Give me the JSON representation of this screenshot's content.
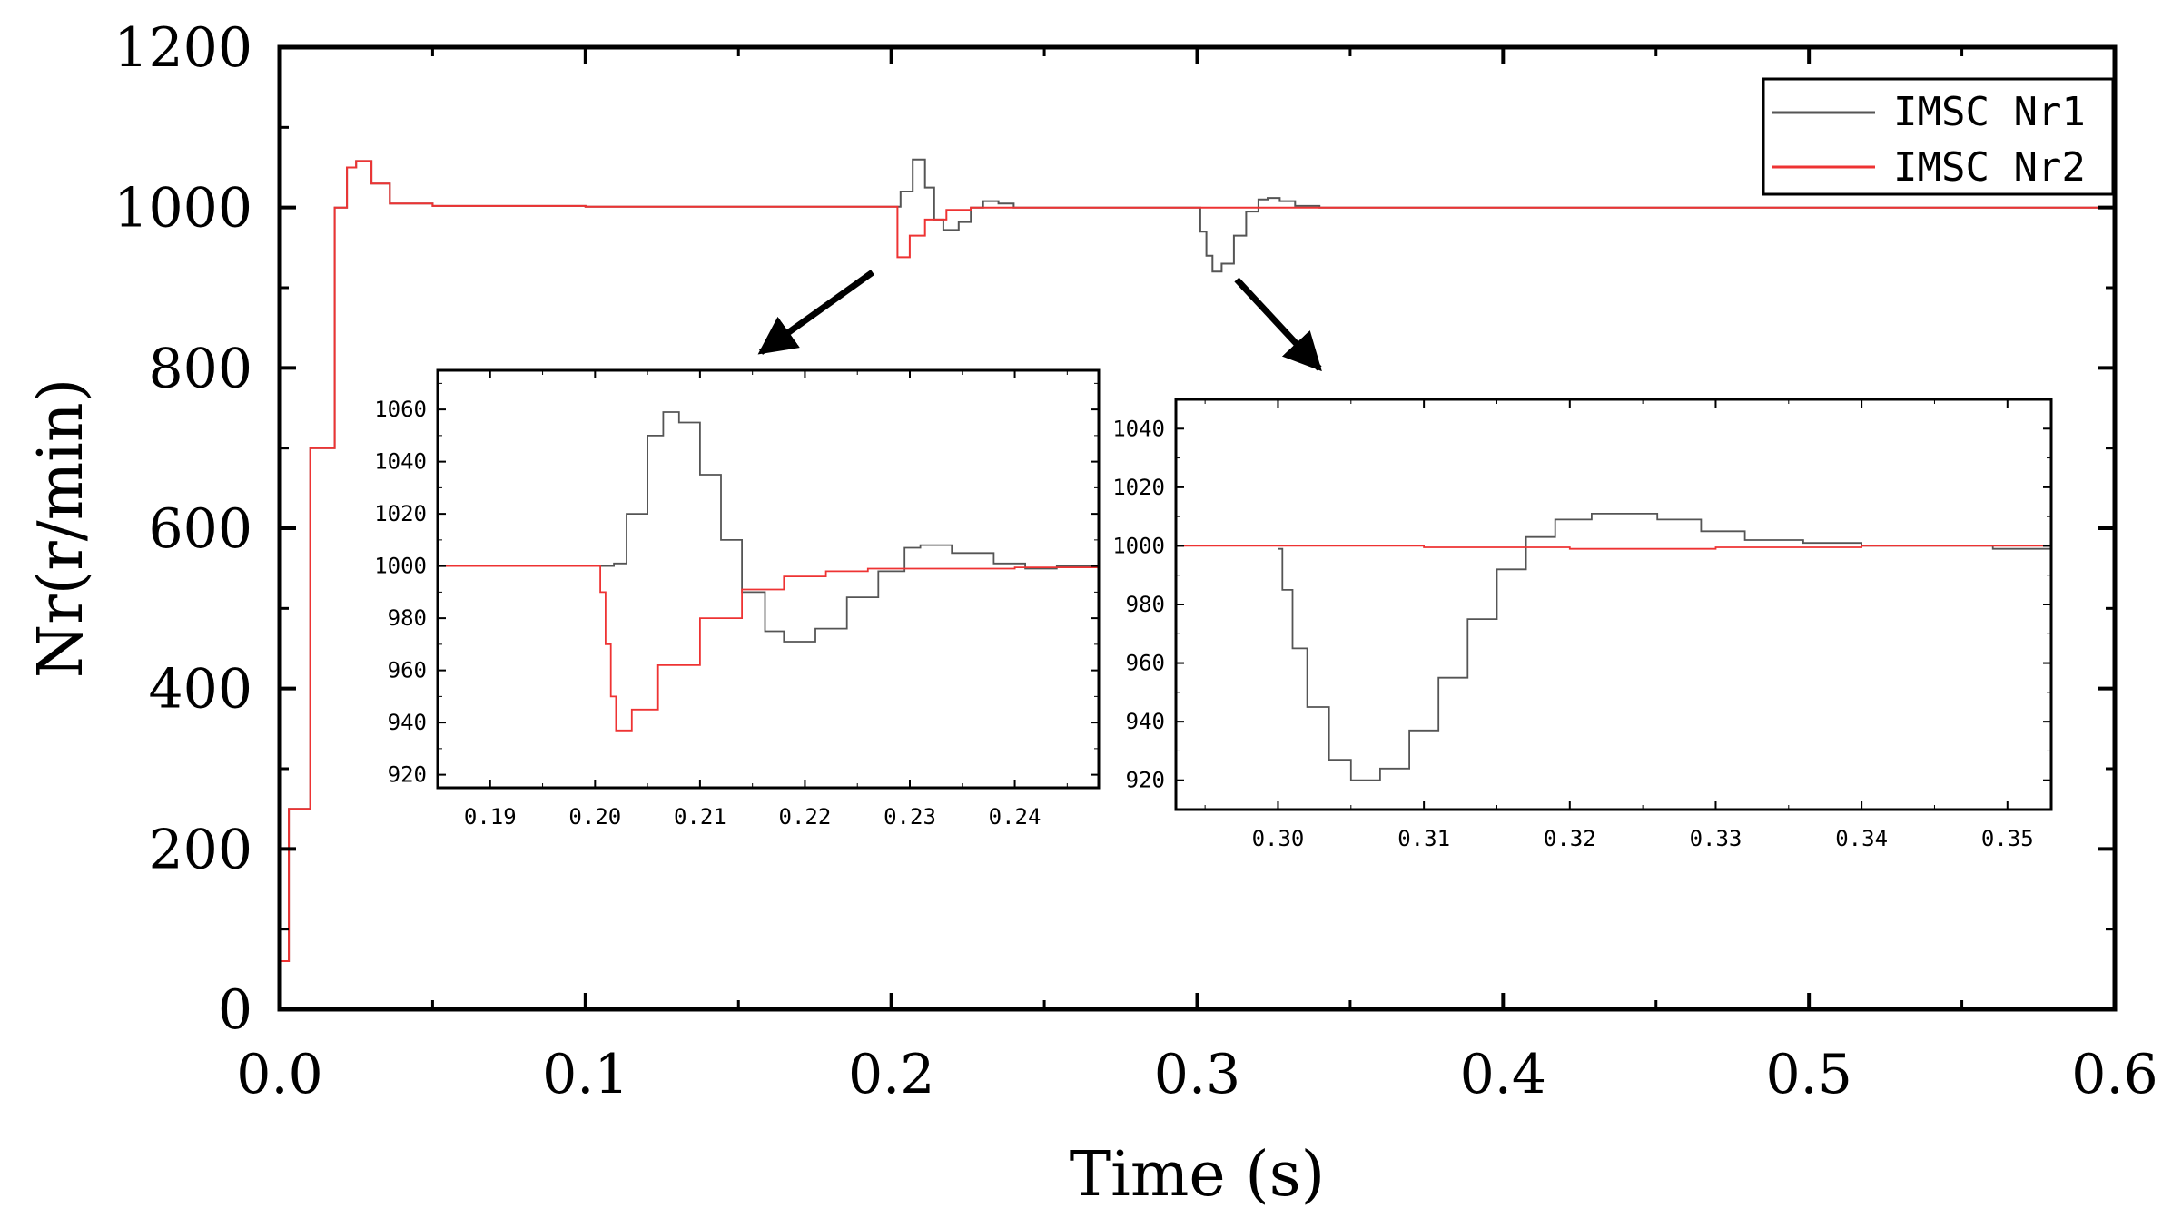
{
  "chart_data": [
    {
      "type": "line",
      "role": "main",
      "xlabel": "Time (s)",
      "ylabel": "Nr(r/min)",
      "xlim": [
        0,
        0.6
      ],
      "ylim": [
        0,
        1200
      ],
      "xticks": [
        "0.0",
        "0.1",
        "0.2",
        "0.3",
        "0.4",
        "0.5",
        "0.6"
      ],
      "yticks": [
        "0",
        "200",
        "400",
        "600",
        "800",
        "1000",
        "1200"
      ],
      "legend_position": "top-right",
      "series": [
        {
          "name": "IMSC Nr1",
          "color": "#555555",
          "points": [
            [
              0,
              60
            ],
            [
              0.003,
              250
            ],
            [
              0.01,
              700
            ],
            [
              0.018,
              1000
            ],
            [
              0.022,
              1050
            ],
            [
              0.025,
              1058
            ],
            [
              0.03,
              1030
            ],
            [
              0.036,
              1005
            ],
            [
              0.05,
              1002
            ],
            [
              0.1,
              1001
            ],
            [
              0.15,
              1001
            ],
            [
              0.2,
              1001
            ],
            [
              0.203,
              1020
            ],
            [
              0.207,
              1060
            ],
            [
              0.211,
              1025
            ],
            [
              0.214,
              985
            ],
            [
              0.217,
              972
            ],
            [
              0.222,
              982
            ],
            [
              0.226,
              1000
            ],
            [
              0.23,
              1008
            ],
            [
              0.235,
              1005
            ],
            [
              0.24,
              1000
            ],
            [
              0.25,
              1000
            ],
            [
              0.3,
              1000
            ],
            [
              0.301,
              970
            ],
            [
              0.303,
              940
            ],
            [
              0.305,
              920
            ],
            [
              0.308,
              930
            ],
            [
              0.312,
              965
            ],
            [
              0.316,
              995
            ],
            [
              0.32,
              1010
            ],
            [
              0.323,
              1012
            ],
            [
              0.327,
              1008
            ],
            [
              0.332,
              1002
            ],
            [
              0.34,
              1000
            ],
            [
              0.4,
              1000
            ],
            [
              0.5,
              1000
            ],
            [
              0.6,
              1000
            ]
          ]
        },
        {
          "name": "IMSC Nr2",
          "color": "#ee3333",
          "points": [
            [
              0,
              60
            ],
            [
              0.003,
              250
            ],
            [
              0.01,
              700
            ],
            [
              0.018,
              1000
            ],
            [
              0.022,
              1050
            ],
            [
              0.025,
              1058
            ],
            [
              0.03,
              1030
            ],
            [
              0.036,
              1005
            ],
            [
              0.05,
              1002
            ],
            [
              0.1,
              1001
            ],
            [
              0.15,
              1001
            ],
            [
              0.2,
              1001
            ],
            [
              0.202,
              938
            ],
            [
              0.206,
              965
            ],
            [
              0.211,
              985
            ],
            [
              0.218,
              997
            ],
            [
              0.226,
              1000
            ],
            [
              0.3,
              1000
            ],
            [
              0.4,
              1000
            ],
            [
              0.5,
              1000
            ],
            [
              0.6,
              1000
            ]
          ]
        }
      ]
    },
    {
      "type": "line",
      "role": "inset",
      "xlim": [
        0.185,
        0.248
      ],
      "ylim": [
        915,
        1075
      ],
      "xticks": [
        "0.19",
        "0.20",
        "0.21",
        "0.22",
        "0.23",
        "0.24"
      ],
      "yticks": [
        "920",
        "940",
        "960",
        "980",
        "1000",
        "1020",
        "1040",
        "1060"
      ],
      "series": [
        {
          "name": "IMSC Nr1",
          "color": "#555555",
          "points": [
            [
              0.185,
              1000
            ],
            [
              0.2,
              1000
            ],
            [
              0.2018,
              1001
            ],
            [
              0.203,
              1020
            ],
            [
              0.205,
              1050
            ],
            [
              0.2065,
              1059
            ],
            [
              0.208,
              1055
            ],
            [
              0.21,
              1035
            ],
            [
              0.212,
              1010
            ],
            [
              0.214,
              990
            ],
            [
              0.2162,
              975
            ],
            [
              0.218,
              971
            ],
            [
              0.221,
              976
            ],
            [
              0.224,
              988
            ],
            [
              0.227,
              998
            ],
            [
              0.2295,
              1007
            ],
            [
              0.231,
              1008
            ],
            [
              0.234,
              1005
            ],
            [
              0.238,
              1001
            ],
            [
              0.241,
              999
            ],
            [
              0.244,
              1000
            ],
            [
              0.248,
              1000
            ]
          ]
        },
        {
          "name": "IMSC Nr2",
          "color": "#ee3333",
          "points": [
            [
              0.185,
              1000
            ],
            [
              0.2,
              1000
            ],
            [
              0.2005,
              990
            ],
            [
              0.201,
              970
            ],
            [
              0.2015,
              950
            ],
            [
              0.202,
              937
            ],
            [
              0.2035,
              945
            ],
            [
              0.206,
              962
            ],
            [
              0.21,
              980
            ],
            [
              0.214,
              991
            ],
            [
              0.218,
              996
            ],
            [
              0.222,
              998
            ],
            [
              0.226,
              999
            ],
            [
              0.23,
              999
            ],
            [
              0.24,
              999.5
            ],
            [
              0.248,
              1000
            ]
          ]
        }
      ]
    },
    {
      "type": "line",
      "role": "inset",
      "xlim": [
        0.293,
        0.353
      ],
      "ylim": [
        910,
        1050
      ],
      "xticks": [
        "0.30",
        "0.31",
        "0.32",
        "0.33",
        "0.34",
        "0.35"
      ],
      "yticks": [
        "920",
        "940",
        "960",
        "980",
        "1000",
        "1020",
        "1040"
      ],
      "series": [
        {
          "name": "IMSC Nr1",
          "color": "#555555",
          "points": [
            [
              0.3,
              999
            ],
            [
              0.3003,
              985
            ],
            [
              0.301,
              965
            ],
            [
              0.302,
              945
            ],
            [
              0.3035,
              927
            ],
            [
              0.305,
              920
            ],
            [
              0.307,
              924
            ],
            [
              0.309,
              937
            ],
            [
              0.311,
              955
            ],
            [
              0.313,
              975
            ],
            [
              0.315,
              992
            ],
            [
              0.317,
              1003
            ],
            [
              0.319,
              1009
            ],
            [
              0.3215,
              1011
            ],
            [
              0.3235,
              1011
            ],
            [
              0.326,
              1009
            ],
            [
              0.329,
              1005
            ],
            [
              0.332,
              1002
            ],
            [
              0.336,
              1001
            ],
            [
              0.34,
              1000
            ],
            [
              0.345,
              1000
            ],
            [
              0.349,
              999
            ],
            [
              0.353,
              999
            ]
          ]
        },
        {
          "name": "IMSC Nr2",
          "color": "#ee3333",
          "points": [
            [
              0.293,
              1000
            ],
            [
              0.3,
              1000
            ],
            [
              0.31,
              999.5
            ],
            [
              0.32,
              999
            ],
            [
              0.33,
              999.5
            ],
            [
              0.34,
              1000
            ],
            [
              0.353,
              999.5
            ]
          ]
        }
      ]
    }
  ]
}
